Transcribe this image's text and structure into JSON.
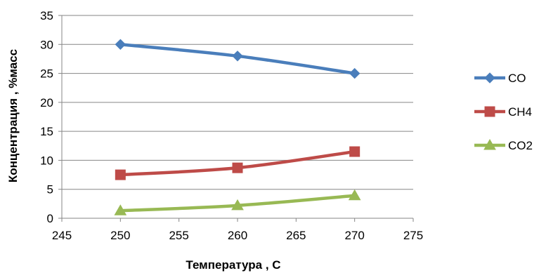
{
  "chart_data": {
    "type": "line",
    "xlabel": "Температура , С",
    "ylabel": "Концентрация , %масс",
    "xlim": [
      245,
      275
    ],
    "ylim": [
      0,
      35
    ],
    "xticks": [
      245,
      250,
      255,
      260,
      265,
      270,
      275
    ],
    "yticks": [
      0,
      5,
      10,
      15,
      20,
      25,
      30,
      35
    ],
    "grid": "horizontal",
    "legend_position": "right",
    "x": [
      250,
      260,
      270
    ],
    "series": [
      {
        "name": "CO",
        "values": [
          30,
          28,
          25
        ],
        "color": "#4A7EBB",
        "marker": "diamond"
      },
      {
        "name": "CH4",
        "values": [
          7.5,
          8.7,
          11.5
        ],
        "color": "#BE4B48",
        "marker": "square"
      },
      {
        "name": "CO2",
        "values": [
          1.3,
          2.2,
          3.9
        ],
        "color": "#98B954",
        "marker": "triangle"
      }
    ]
  }
}
